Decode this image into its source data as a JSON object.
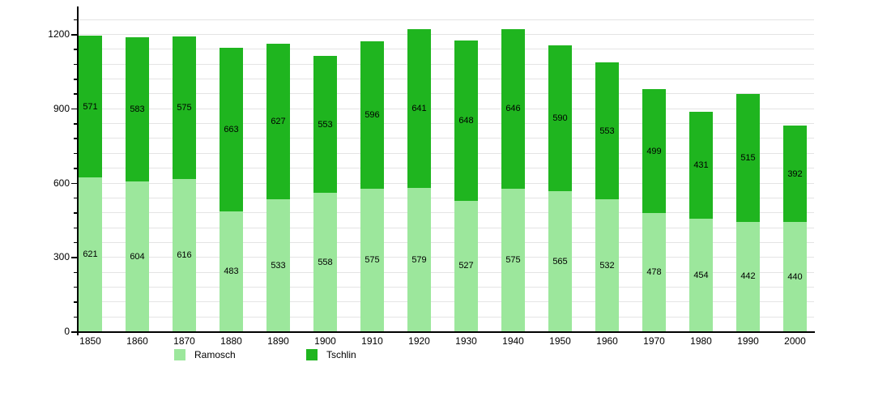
{
  "chart_data": {
    "type": "bar",
    "stacked": true,
    "title": "",
    "xlabel": "",
    "ylabel": "",
    "categories": [
      "1850",
      "1860",
      "1870",
      "1880",
      "1890",
      "1900",
      "1910",
      "1920",
      "1930",
      "1940",
      "1950",
      "1960",
      "1970",
      "1980",
      "1990",
      "2000"
    ],
    "series": [
      {
        "name": "Ramosch",
        "color": "#9CE79C",
        "values": [
          621,
          604,
          616,
          483,
          533,
          558,
          575,
          579,
          527,
          575,
          565,
          532,
          478,
          454,
          442,
          440
        ]
      },
      {
        "name": "Tschlin",
        "color": "#1FB51F",
        "values": [
          571,
          583,
          575,
          663,
          627,
          553,
          596,
          641,
          648,
          646,
          590,
          553,
          499,
          431,
          515,
          392
        ]
      }
    ],
    "ylim": [
      0,
      1310
    ],
    "yticks": [
      0,
      300,
      600,
      900,
      1200
    ],
    "minor_tick_step": 60,
    "grid": true,
    "gridline_step": 60,
    "legend_position": "bottom",
    "bar_value_labels": true
  },
  "colors": {
    "grid": "#E4E4E4",
    "axis": "#000000",
    "background": "#FFFFFF",
    "label_text": "#000000"
  }
}
